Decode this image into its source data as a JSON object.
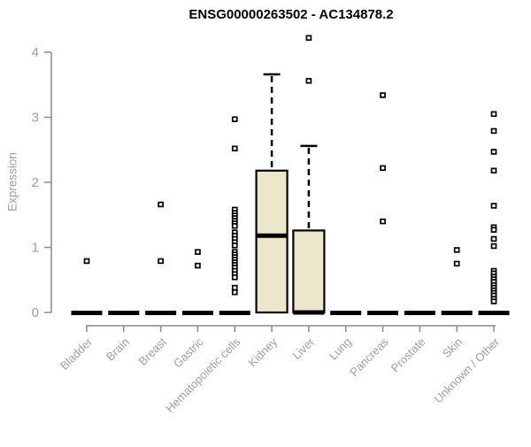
{
  "title": "ENSG00000263502 - AC134878.2",
  "chart_data": {
    "type": "boxplot",
    "title": "ENSG00000263502 - AC134878.2",
    "xlabel": "",
    "ylabel": "Expression",
    "ylim": [
      0,
      4
    ],
    "yticks": [
      0,
      1,
      2,
      3,
      4
    ],
    "grid": false,
    "legend": false,
    "categories": [
      "Bladder",
      "Brain",
      "Breast",
      "Gastric",
      "Hematopoietic cells",
      "Kidney",
      "Liver",
      "Lung",
      "Pancreas",
      "Prostate",
      "Skin",
      "Unknown / Other"
    ],
    "series": [
      {
        "category": "Bladder",
        "q1": 0,
        "median": 0,
        "q3": 0,
        "whisker_low": 0,
        "whisker_high": 0,
        "outliers": [
          0.79
        ]
      },
      {
        "category": "Brain",
        "q1": 0,
        "median": 0,
        "q3": 0,
        "whisker_low": 0,
        "whisker_high": 0,
        "outliers": []
      },
      {
        "category": "Breast",
        "q1": 0,
        "median": 0,
        "q3": 0,
        "whisker_low": 0,
        "whisker_high": 0,
        "outliers": [
          1.66,
          0.79
        ]
      },
      {
        "category": "Gastric",
        "q1": 0,
        "median": 0,
        "q3": 0,
        "whisker_low": 0,
        "whisker_high": 0,
        "outliers": [
          0.93,
          0.72
        ]
      },
      {
        "category": "Hematopoietic cells",
        "q1": 0,
        "median": 0,
        "q3": 0,
        "whisker_low": 0,
        "whisker_high": 0,
        "outliers": [
          2.97,
          2.52,
          1.58,
          1.53,
          1.49,
          1.45,
          1.41,
          1.37,
          1.33,
          1.23,
          1.18,
          1.13,
          1.08,
          1.03,
          0.93,
          0.89,
          0.85,
          0.81,
          0.77,
          0.73,
          0.69,
          0.64,
          0.59,
          0.54,
          0.38,
          0.31
        ]
      },
      {
        "category": "Kidney",
        "q1": 0,
        "median": 1.18,
        "q3": 2.18,
        "whisker_low": 0,
        "whisker_high": 3.66,
        "outliers": []
      },
      {
        "category": "Liver",
        "q1": 0,
        "median": 0,
        "q3": 1.26,
        "whisker_low": 0,
        "whisker_high": 2.56,
        "outliers": [
          4.22,
          3.56
        ]
      },
      {
        "category": "Lung",
        "q1": 0,
        "median": 0,
        "q3": 0,
        "whisker_low": 0,
        "whisker_high": 0,
        "outliers": []
      },
      {
        "category": "Pancreas",
        "q1": 0,
        "median": 0,
        "q3": 0,
        "whisker_low": 0,
        "whisker_high": 0,
        "outliers": [
          3.34,
          2.22,
          1.4
        ]
      },
      {
        "category": "Prostate",
        "q1": 0,
        "median": 0,
        "q3": 0,
        "whisker_low": 0,
        "whisker_high": 0,
        "outliers": []
      },
      {
        "category": "Skin",
        "q1": 0,
        "median": 0,
        "q3": 0,
        "whisker_low": 0,
        "whisker_high": 0,
        "outliers": [
          0.96,
          0.75
        ]
      },
      {
        "category": "Unknown / Other",
        "q1": 0,
        "median": 0,
        "q3": 0,
        "whisker_low": 0,
        "whisker_high": 0,
        "outliers": [
          3.05,
          2.79,
          2.47,
          2.18,
          1.64,
          1.31,
          1.27,
          1.13,
          1.02,
          0.64,
          0.6,
          0.55,
          0.51,
          0.47,
          0.42,
          0.38,
          0.34,
          0.3,
          0.26,
          0.21,
          0.17
        ]
      }
    ],
    "colors": {
      "box_fill": "#ECE6CB",
      "box_stroke": "#000000",
      "median": "#000000",
      "whisker": "#000000",
      "outlier_stroke": "#000000",
      "outlier_fill": "#FFFFFF",
      "axis": "#8A8A8A",
      "tick_label": "#9E9E9E",
      "title": "#000000",
      "background": "#FFFFFF"
    }
  }
}
